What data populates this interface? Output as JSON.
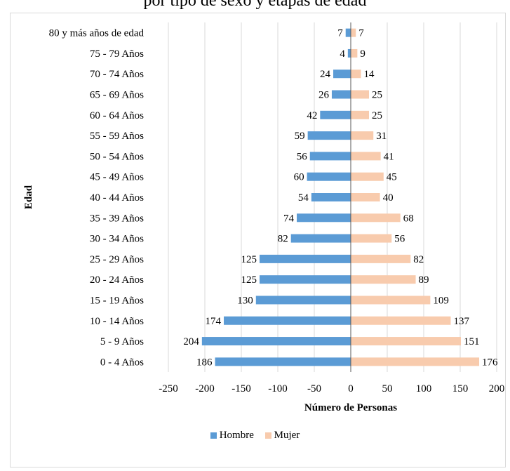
{
  "top_text": "por tipo de sexo y etapas de edad",
  "chart_data": {
    "type": "bar",
    "orientation": "horizontal",
    "categories": [
      "80 y más años de edad",
      "75 - 79 Años",
      "70 - 74 Años",
      "65 - 69 Años",
      "60 - 64 Años",
      "55 - 59 Años",
      "50 - 54 Años",
      "45 - 49 Años",
      "40 - 44 Años",
      "35 - 39 Años",
      "30 - 34 Años",
      "25 - 29 Años",
      "20 - 24 Años",
      "15 - 19 Años",
      "10 - 14 Años",
      "5 - 9 Años",
      "0 - 4 Años"
    ],
    "series": [
      {
        "name": "Hombre",
        "color": "#5b9bd5",
        "values": [
          -7,
          -4,
          -24,
          -26,
          -42,
          -59,
          -56,
          -60,
          -54,
          -74,
          -82,
          -125,
          -125,
          -130,
          -174,
          -204,
          -186
        ],
        "labels": [
          "7",
          "4",
          "24",
          "26",
          "42",
          "59",
          "56",
          "60",
          "54",
          "74",
          "82",
          "125",
          "125",
          "130",
          "174",
          "204",
          "186"
        ]
      },
      {
        "name": "Mujer",
        "color": "#f8cbad",
        "values": [
          7,
          9,
          14,
          25,
          25,
          31,
          41,
          45,
          40,
          68,
          56,
          82,
          89,
          109,
          137,
          151,
          176
        ],
        "labels": [
          "7",
          "9",
          "14",
          "25",
          "25",
          "31",
          "41",
          "45",
          "40",
          "68",
          "56",
          "82",
          "89",
          "109",
          "137",
          "151",
          "176"
        ]
      }
    ],
    "xlim": [
      -250,
      200
    ],
    "xticks": [
      -250,
      -200,
      -150,
      -100,
      -50,
      0,
      50,
      100,
      150,
      200
    ],
    "xtick_labels": [
      "-250",
      "-200",
      "-150",
      "-100",
      "-50",
      "0",
      "50",
      "100",
      "150",
      "200"
    ],
    "xlabel": "Número de Personas",
    "ylabel": "Edad",
    "grid": true,
    "legend_position": "bottom"
  }
}
